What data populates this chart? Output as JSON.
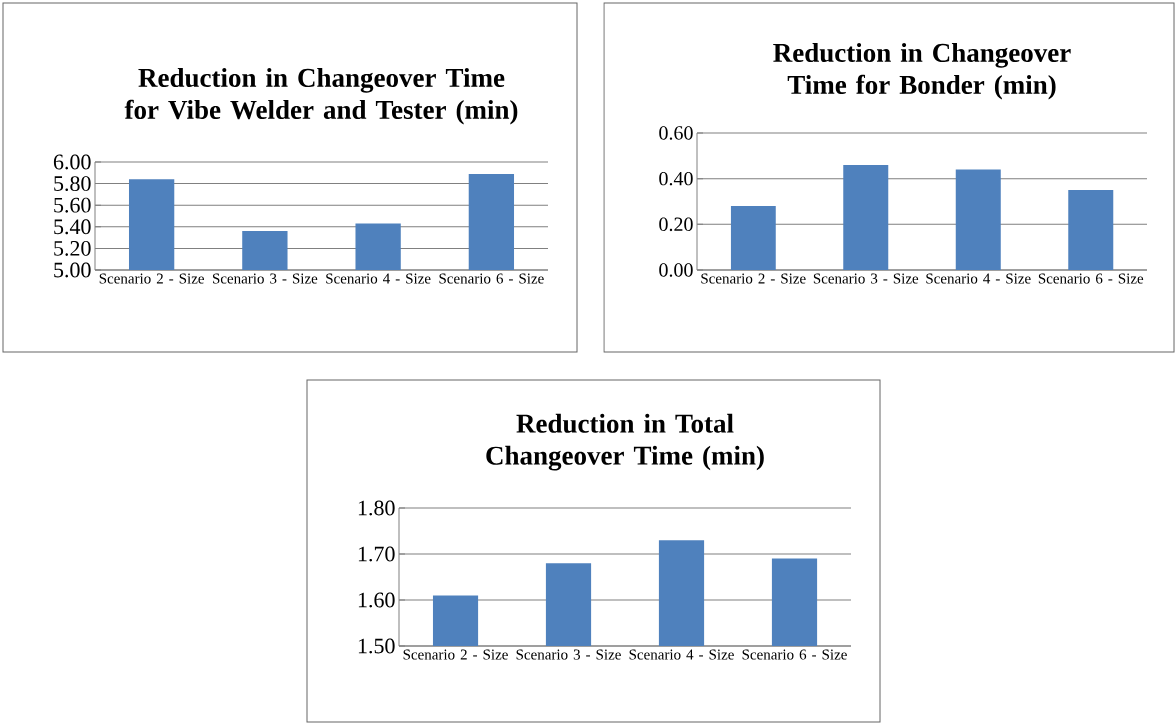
{
  "chart_data": [
    {
      "type": "bar",
      "title": "Reduction in Changeover Time for Vibe Welder and Tester (min)",
      "categories": [
        "Scenario 2 - Size",
        "Scenario 3 - Size",
        "Scenario 4 - Size",
        "Scenario 6 - Size"
      ],
      "values": [
        5.84,
        5.36,
        5.43,
        5.89
      ],
      "color": "#4f81bd",
      "ylim": [
        5,
        6
      ],
      "yticks": [
        {
          "value": 5,
          "label": "5.00"
        },
        {
          "value": 5.2,
          "label": "5.20"
        },
        {
          "value": 5.4,
          "label": "5.40"
        },
        {
          "value": 5.6,
          "label": "5.60"
        },
        {
          "value": 5.8,
          "label": "5.80"
        },
        {
          "value": 6,
          "label": "6.00"
        }
      ],
      "grid": "y"
    },
    {
      "type": "bar",
      "title": "Reduction in Changeover Time for Bonder (min)",
      "categories": [
        "Scenario 2 - Size",
        "Scenario 3 - Size",
        "Scenario 4 - Size",
        "Scenario 6 - Size"
      ],
      "values": [
        0.28,
        0.46,
        0.44,
        0.35
      ],
      "color": "#4f81bd",
      "ylim": [
        0,
        0.6
      ],
      "yticks": [
        {
          "value": 0,
          "label": "0.00"
        },
        {
          "value": 0.2,
          "label": "0.20"
        },
        {
          "value": 0.4,
          "label": "0.40"
        },
        {
          "value": 0.6,
          "label": "0.60"
        }
      ],
      "grid": "y"
    },
    {
      "type": "bar",
      "title": "Reduction in Total Changeover Time (min)",
      "categories": [
        "Scenario 2 - Size",
        "Scenario 3 - Size",
        "Scenario 4 - Size",
        "Scenario 6 - Size"
      ],
      "values": [
        1.61,
        1.68,
        1.73,
        1.69
      ],
      "color": "#4f81bd",
      "ylim": [
        1.5,
        1.8
      ],
      "yticks": [
        {
          "value": 1.5,
          "label": "1.50"
        },
        {
          "value": 1.6,
          "label": "1.60"
        },
        {
          "value": 1.7,
          "label": "1.70"
        },
        {
          "value": 1.8,
          "label": "1.80"
        }
      ],
      "grid": "y"
    }
  ]
}
